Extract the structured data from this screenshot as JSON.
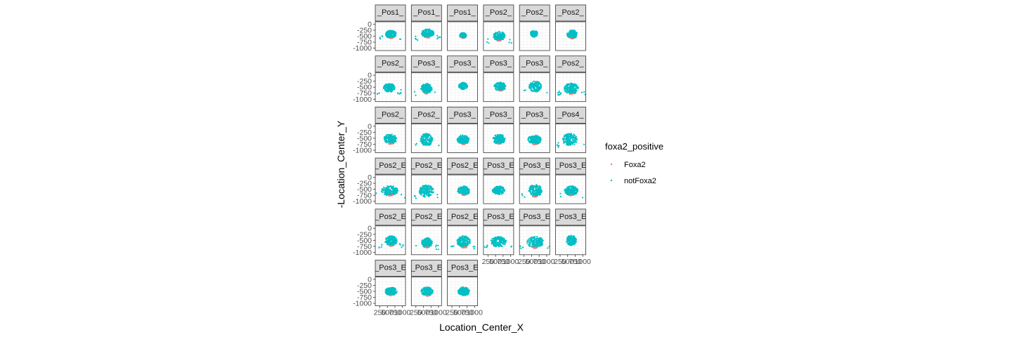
{
  "chart_data": {
    "type": "scatter",
    "layout": "facet-grid",
    "xlabel": "Location_Center_X",
    "ylabel": "-Location_Center_Y",
    "x_ticks": [
      250,
      500,
      750,
      1000
    ],
    "x_tick_labels": [
      "250",
      "500",
      "750",
      "1000"
    ],
    "xlim": [
      100,
      1100
    ],
    "y_ticks": [
      0,
      -250,
      -500,
      -750,
      -1000
    ],
    "y_tick_labels": [
      "0",
      "-250",
      "-500",
      "-750",
      "-1000"
    ],
    "ylim": [
      -1100,
      100
    ],
    "grid": true,
    "legend": {
      "title": "foxa2_positive",
      "position": "right",
      "entries": [
        {
          "label": "Foxa2",
          "color": "#F8766D"
        },
        {
          "label": "notFoxa2",
          "color": "#00BFC4"
        }
      ]
    },
    "panels": [
      {
        "label": "_Pos1_",
        "cx": 620,
        "cy": -420,
        "rx": 210,
        "ry": 190,
        "foxa2": 1,
        "outliers": 2
      },
      {
        "label": "_Pos1_",
        "cx": 640,
        "cy": -380,
        "rx": 250,
        "ry": 210,
        "foxa2": 1,
        "outliers": 3
      },
      {
        "label": "_Pos1_",
        "cx": 620,
        "cy": -470,
        "rx": 130,
        "ry": 130,
        "foxa2": 1,
        "outliers": 0
      },
      {
        "label": "_Pos2_",
        "cx": 620,
        "cy": -500,
        "rx": 230,
        "ry": 230,
        "foxa2": 1,
        "outliers": 2
      },
      {
        "label": "_Pos2_",
        "cx": 580,
        "cy": -400,
        "rx": 140,
        "ry": 160,
        "foxa2": 0,
        "outliers": 0
      },
      {
        "label": "_Pos2_",
        "cx": 650,
        "cy": -420,
        "rx": 200,
        "ry": 210,
        "foxa2": 1,
        "outliers": 0
      },
      {
        "label": "_Pos2_",
        "cx": 560,
        "cy": -520,
        "rx": 220,
        "ry": 210,
        "foxa2": 0,
        "outliers": 3
      },
      {
        "label": "_Pos3_",
        "cx": 600,
        "cy": -560,
        "rx": 220,
        "ry": 250,
        "foxa2": 1,
        "outliers": 1
      },
      {
        "label": "_Pos3_",
        "cx": 620,
        "cy": -450,
        "rx": 170,
        "ry": 170,
        "foxa2": 0,
        "outliers": 0
      },
      {
        "label": "_Pos3_",
        "cx": 650,
        "cy": -470,
        "rx": 230,
        "ry": 210,
        "foxa2": 1,
        "outliers": 0
      },
      {
        "label": "_Pos3_",
        "cx": 620,
        "cy": -470,
        "rx": 240,
        "ry": 260,
        "foxa2": 0,
        "outliers": 1
      },
      {
        "label": "_Pos2_",
        "cx": 620,
        "cy": -560,
        "rx": 280,
        "ry": 260,
        "foxa2": 1,
        "outliers": 4
      },
      {
        "label": "_Pos2_",
        "cx": 600,
        "cy": -530,
        "rx": 260,
        "ry": 240,
        "foxa2": 1,
        "outliers": 0
      },
      {
        "label": "_Pos2_",
        "cx": 600,
        "cy": -560,
        "rx": 240,
        "ry": 300,
        "foxa2": 0,
        "outliers": 1
      },
      {
        "label": "_Pos3_",
        "cx": 620,
        "cy": -560,
        "rx": 230,
        "ry": 230,
        "foxa2": 1,
        "outliers": 0
      },
      {
        "label": "_Pos3_",
        "cx": 620,
        "cy": -540,
        "rx": 240,
        "ry": 240,
        "foxa2": 1,
        "outliers": 0
      },
      {
        "label": "_Pos3_",
        "cx": 600,
        "cy": -560,
        "rx": 260,
        "ry": 230,
        "foxa2": 1,
        "outliers": 0
      },
      {
        "label": "_Pos4_",
        "cx": 580,
        "cy": -560,
        "rx": 290,
        "ry": 300,
        "foxa2": 0,
        "outliers": 2
      },
      {
        "label": "_Pos2_E",
        "cx": 580,
        "cy": -560,
        "rx": 320,
        "ry": 240,
        "foxa2": 1,
        "outliers": 1
      },
      {
        "label": "_Pos2_E",
        "cx": 600,
        "cy": -580,
        "rx": 280,
        "ry": 300,
        "foxa2": 0,
        "outliers": 2
      },
      {
        "label": "_Pos2_E",
        "cx": 640,
        "cy": -560,
        "rx": 240,
        "ry": 220,
        "foxa2": 1,
        "outliers": 0
      },
      {
        "label": "_Pos3_E",
        "cx": 600,
        "cy": -540,
        "rx": 240,
        "ry": 210,
        "foxa2": 0,
        "outliers": 0
      },
      {
        "label": "_Pos3_E",
        "cx": 620,
        "cy": -560,
        "rx": 260,
        "ry": 300,
        "foxa2": 1,
        "outliers": 1
      },
      {
        "label": "_Pos3_E",
        "cx": 620,
        "cy": -560,
        "rx": 260,
        "ry": 230,
        "foxa2": 1,
        "outliers": 1
      },
      {
        "label": "_Pos2_E",
        "cx": 620,
        "cy": -520,
        "rx": 230,
        "ry": 250,
        "foxa2": 1,
        "outliers": 3
      },
      {
        "label": "_Pos2_E",
        "cx": 620,
        "cy": -600,
        "rx": 220,
        "ry": 240,
        "foxa2": 1,
        "outliers": 2
      },
      {
        "label": "_Pos2_E",
        "cx": 640,
        "cy": -560,
        "rx": 260,
        "ry": 290,
        "foxa2": 1,
        "outliers": 2
      },
      {
        "label": "_Pos3_E",
        "cx": 600,
        "cy": -560,
        "rx": 300,
        "ry": 250,
        "foxa2": 0,
        "outliers": 2
      },
      {
        "label": "_Pos3_E",
        "cx": 620,
        "cy": -580,
        "rx": 320,
        "ry": 280,
        "foxa2": 1,
        "outliers": 2
      },
      {
        "label": "_Pos3_E",
        "cx": 620,
        "cy": -500,
        "rx": 200,
        "ry": 250,
        "foxa2": 0,
        "outliers": 0
      },
      {
        "label": "_Pos3_E",
        "cx": 620,
        "cy": -500,
        "rx": 230,
        "ry": 200,
        "foxa2": 1,
        "outliers": 0
      },
      {
        "label": "_Pos3_E",
        "cx": 620,
        "cy": -500,
        "rx": 230,
        "ry": 220,
        "foxa2": 1,
        "outliers": 0
      },
      {
        "label": "_Pos3_E",
        "cx": 640,
        "cy": -500,
        "rx": 220,
        "ry": 220,
        "foxa2": 0,
        "outliers": 0
      }
    ]
  }
}
